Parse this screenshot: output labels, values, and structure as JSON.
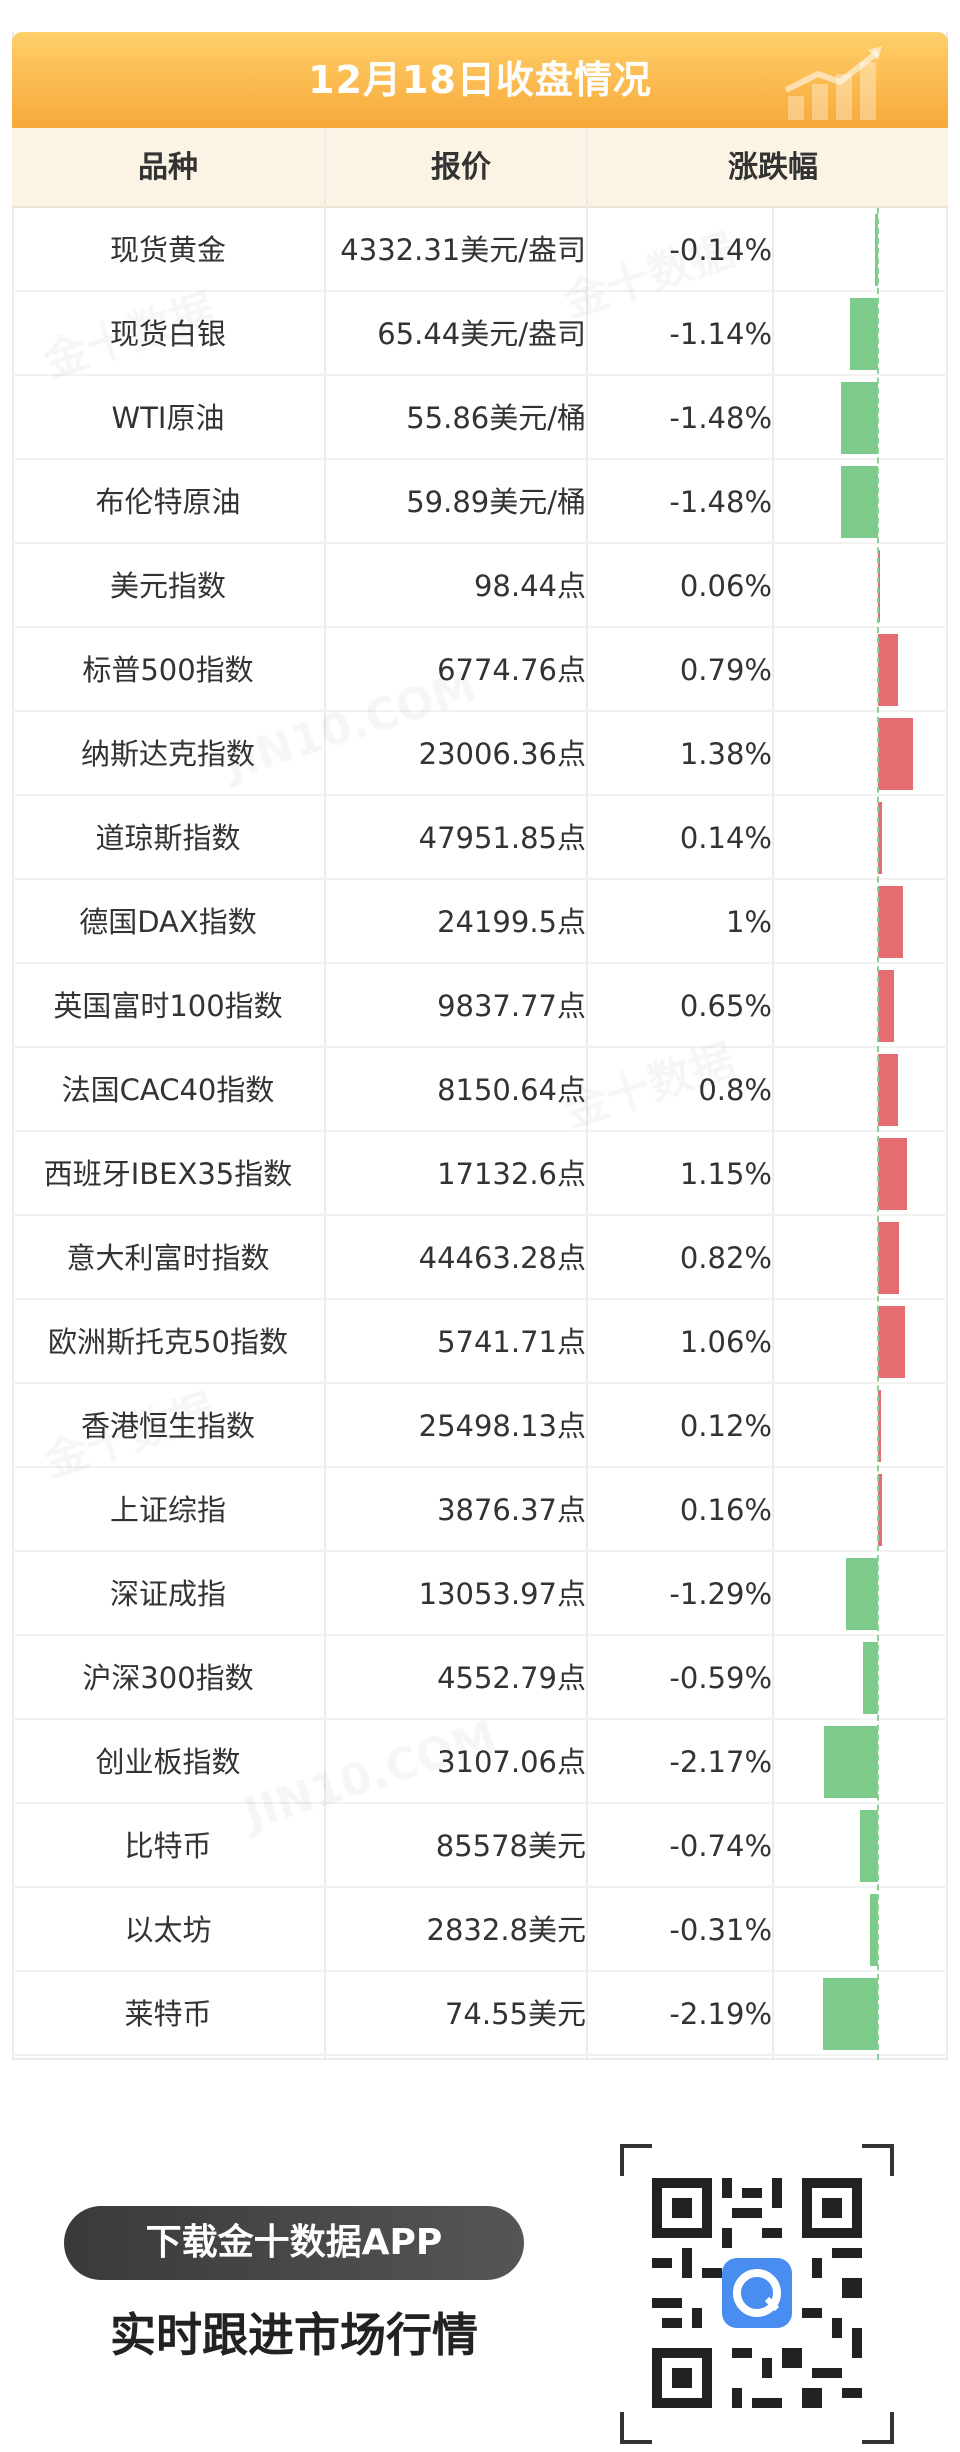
{
  "header": {
    "title": "12月18日收盘情况",
    "columns": [
      "品种",
      "报价",
      "涨跌幅"
    ]
  },
  "watermark": {
    "brand": "金十数据",
    "site": "JIN10.COM"
  },
  "colors": {
    "up": "#e36d71",
    "down": "#7ccb8a",
    "banner": "#f7a93a",
    "header_bg": "#fbf3e4"
  },
  "chart_data": {
    "type": "table",
    "columns": [
      "品种",
      "报价",
      "涨跌幅"
    ],
    "rows": [
      {
        "name": "现货黄金",
        "price": "4332.31美元/盎司",
        "change_label": "-0.14%",
        "change": -0.14
      },
      {
        "name": "现货白银",
        "price": "65.44美元/盎司",
        "change_label": "-1.14%",
        "change": -1.14
      },
      {
        "name": "WTI原油",
        "price": "55.86美元/桶",
        "change_label": "-1.48%",
        "change": -1.48
      },
      {
        "name": "布伦特原油",
        "price": "59.89美元/桶",
        "change_label": "-1.48%",
        "change": -1.48
      },
      {
        "name": "美元指数",
        "price": "98.44点",
        "change_label": "0.06%",
        "change": 0.06
      },
      {
        "name": "标普500指数",
        "price": "6774.76点",
        "change_label": "0.79%",
        "change": 0.79
      },
      {
        "name": "纳斯达克指数",
        "price": "23006.36点",
        "change_label": "1.38%",
        "change": 1.38
      },
      {
        "name": "道琼斯指数",
        "price": "47951.85点",
        "change_label": "0.14%",
        "change": 0.14
      },
      {
        "name": "德国DAX指数",
        "price": "24199.5点",
        "change_label": "1%",
        "change": 1.0
      },
      {
        "name": "英国富时100指数",
        "price": "9837.77点",
        "change_label": "0.65%",
        "change": 0.65
      },
      {
        "name": "法国CAC40指数",
        "price": "8150.64点",
        "change_label": "0.8%",
        "change": 0.8
      },
      {
        "name": "西班牙IBEX35指数",
        "price": "17132.6点",
        "change_label": "1.15%",
        "change": 1.15
      },
      {
        "name": "意大利富时指数",
        "price": "44463.28点",
        "change_label": "0.82%",
        "change": 0.82
      },
      {
        "name": "欧洲斯托克50指数",
        "price": "5741.71点",
        "change_label": "1.06%",
        "change": 1.06
      },
      {
        "name": "香港恒生指数",
        "price": "25498.13点",
        "change_label": "0.12%",
        "change": 0.12
      },
      {
        "name": "上证综指",
        "price": "3876.37点",
        "change_label": "0.16%",
        "change": 0.16
      },
      {
        "name": "深证成指",
        "price": "13053.97点",
        "change_label": "-1.29%",
        "change": -1.29
      },
      {
        "name": "沪深300指数",
        "price": "4552.79点",
        "change_label": "-0.59%",
        "change": -0.59
      },
      {
        "name": "创业板指数",
        "price": "3107.06点",
        "change_label": "-2.17%",
        "change": -2.17
      },
      {
        "name": "比特币",
        "price": "85578美元",
        "change_label": "-0.74%",
        "change": -0.74
      },
      {
        "name": "以太坊",
        "price": "2832.8美元",
        "change_label": "-0.31%",
        "change": -0.31
      },
      {
        "name": "莱特币",
        "price": "74.55美元",
        "change_label": "-2.19%",
        "change": -2.19
      }
    ]
  },
  "promo": {
    "button_label": "下载金十数据APP",
    "tagline": "实时跟进市场行情"
  }
}
